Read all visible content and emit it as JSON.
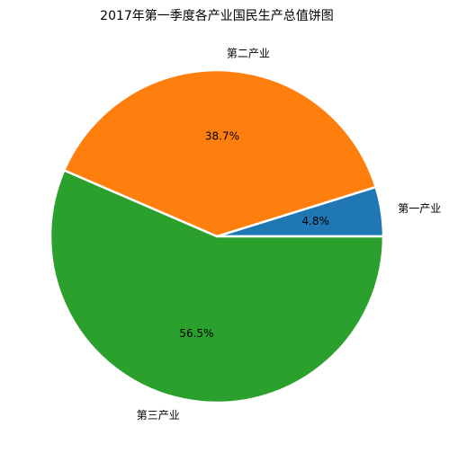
{
  "chart_data": {
    "type": "pie",
    "title": "2017年第一季度各产业国民生产总值饼图",
    "categories": [
      "第一产业",
      "第二产业",
      "第三产业"
    ],
    "values": [
      4.8,
      38.7,
      56.5
    ],
    "value_labels": [
      "4.8%",
      "38.7%",
      "56.5%"
    ],
    "colors": [
      "#1f77b4",
      "#ff7f0e",
      "#2ca02c"
    ]
  }
}
